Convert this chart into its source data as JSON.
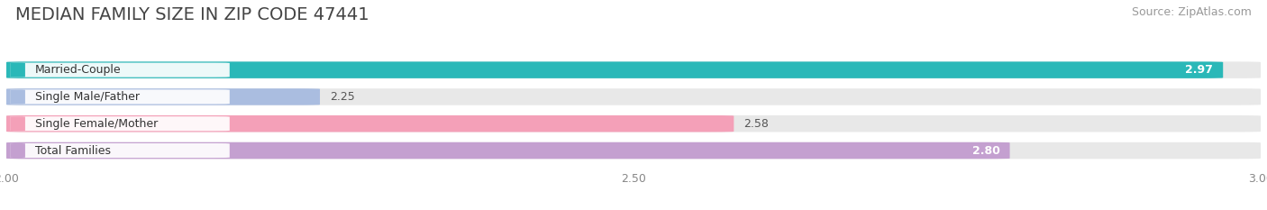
{
  "title": "MEDIAN FAMILY SIZE IN ZIP CODE 47441",
  "source": "Source: ZipAtlas.com",
  "categories": [
    "Married-Couple",
    "Single Male/Father",
    "Single Female/Mother",
    "Total Families"
  ],
  "values": [
    2.97,
    2.25,
    2.58,
    2.8
  ],
  "bar_colors": [
    "#2ab8b8",
    "#aabde0",
    "#f4a0b8",
    "#c4a0d0"
  ],
  "xlim": [
    2.0,
    3.0
  ],
  "xticks": [
    2.0,
    2.5,
    3.0
  ],
  "background_color": "#ffffff",
  "bar_bg_color": "#e8e8e8",
  "title_color": "#444444",
  "title_fontsize": 14,
  "source_fontsize": 9,
  "label_fontsize": 9,
  "value_fontsize": 9,
  "tick_fontsize": 9
}
